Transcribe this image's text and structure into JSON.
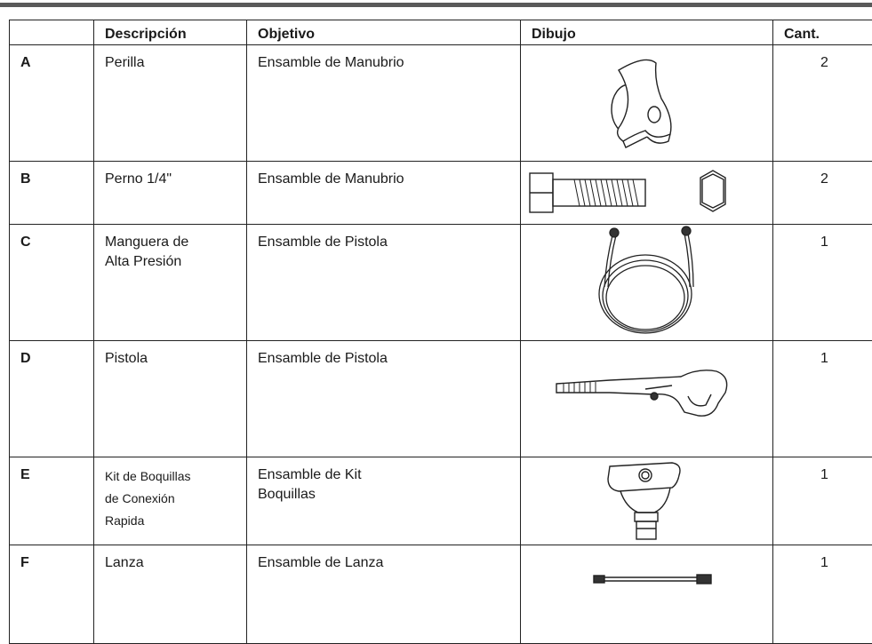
{
  "table": {
    "header": [
      "",
      "Descripción",
      "Objetivo",
      "Dibujo",
      "Cant."
    ],
    "rows": [
      {
        "key": "A",
        "description": [
          "Perilla"
        ],
        "purpose": [
          "Ensamble de Manubrio"
        ],
        "qty": "2"
      },
      {
        "key": "B",
        "description": [
          "Perno 1/4\""
        ],
        "purpose": [
          "Ensamble de Manubrio"
        ],
        "qty": "2"
      },
      {
        "key": "C",
        "description": [
          "Manguera  de",
          "Alta Presión"
        ],
        "purpose": [
          "Ensamble de Pistola"
        ],
        "qty": "1"
      },
      {
        "key": "D",
        "description": [
          "Pistola"
        ],
        "purpose": [
          "Ensamble de Pistola"
        ],
        "qty": "1"
      },
      {
        "key": "E",
        "description": [
          "Kit de Boquillas",
          "de Conexión",
          "Rapida"
        ],
        "purpose": [
          "Ensamble de Kit",
          "Boquillas"
        ],
        "qty": "1"
      },
      {
        "key": "F",
        "description": [
          "Lanza"
        ],
        "purpose": [
          "Ensamble de Lanza"
        ],
        "qty": "1"
      }
    ]
  }
}
